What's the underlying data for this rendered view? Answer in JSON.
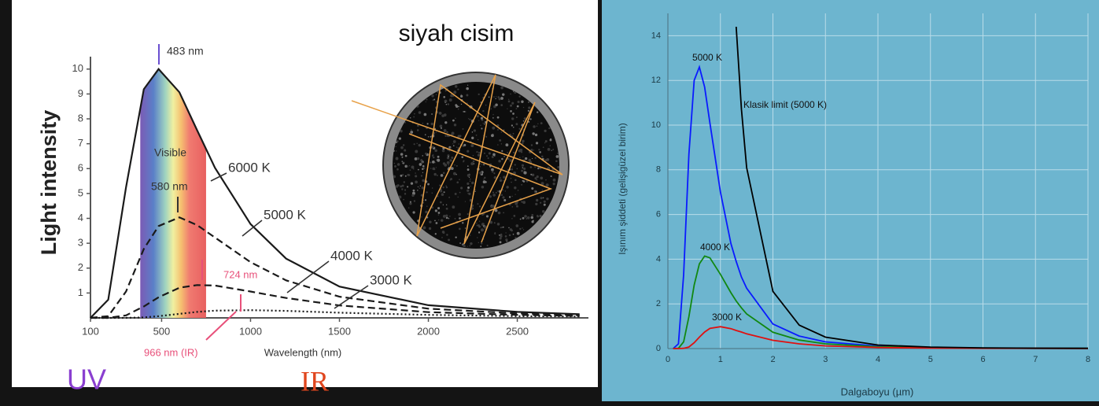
{
  "chart_data": [
    {
      "type": "line",
      "x_label": "Wavelength (nm)",
      "y_label": "Light intensity",
      "x": [
        100,
        200,
        300,
        400,
        483,
        600,
        700,
        800,
        1000,
        1200,
        1500,
        2000,
        2500,
        2850
      ],
      "series": [
        {
          "name": "6000 K",
          "color": "#1a1a1a",
          "dash": "solid",
          "values": [
            0,
            0.73,
            5.25,
            9.19,
            10,
            9.07,
            7.54,
            6.03,
            3.77,
            2.38,
            1.26,
            0.51,
            0.24,
            0.15
          ]
        },
        {
          "name": "5000 K",
          "color": "#1a1a1a",
          "dash": "dashed",
          "values": [
            0,
            0.07,
            1.06,
            2.77,
            3.69,
            4.04,
            3.73,
            3.23,
            2.24,
            1.51,
            0.85,
            0.37,
            0.18,
            0.11
          ]
        },
        {
          "name": "4000 K",
          "color": "#1a1a1a",
          "dash": "dashed",
          "values": [
            0,
            0,
            0.1,
            0.46,
            0.83,
            1.21,
            1.32,
            1.3,
            1.06,
            0.8,
            0.5,
            0.23,
            0.12,
            0.08
          ]
        },
        {
          "name": "3000 K",
          "color": "#1a1a1a",
          "dash": "dotted",
          "values": [
            0,
            0,
            0,
            0.02,
            0.07,
            0.16,
            0.24,
            0.29,
            0.31,
            0.28,
            0.21,
            0.12,
            0.07,
            0.05
          ]
        }
      ],
      "annotations": [
        "483 nm",
        "580 nm",
        "724 nm",
        "966 nm (IR)",
        "Visible",
        "UV",
        "IR"
      ],
      "xlim": [
        100,
        2900
      ],
      "xticks": [
        100,
        500,
        1000,
        1500,
        2000,
        2500
      ],
      "ylim": [
        0,
        10.5
      ],
      "yticks": [
        1,
        2,
        3,
        4,
        5,
        6,
        7,
        8,
        9,
        10
      ],
      "grid": false
    },
    {
      "type": "line",
      "x_label": "Dalgaboyu (µm)",
      "y_label": "Işınım şiddeti (gelişigüzel birim)",
      "x": [
        0.1,
        0.2,
        0.3,
        0.4,
        0.5,
        0.6,
        0.7,
        0.8,
        1,
        1.2,
        1.3,
        1.4,
        1.5,
        2,
        2.5,
        3,
        4,
        5,
        6,
        7,
        8
      ],
      "series": [
        {
          "name": "5000 K",
          "color": "#0a1aff",
          "dash": "solid",
          "values": [
            0,
            0.21,
            3.3,
            8.7,
            12.0,
            12.6,
            11.7,
            10.1,
            7.0,
            4.7,
            3.9,
            3.2,
            2.7,
            1.1,
            0.56,
            0.3,
            0.11,
            0.05,
            0.02,
            0.01,
            0.01
          ]
        },
        {
          "name": "4000 K",
          "color": "#118811",
          "dash": "solid",
          "values": [
            0,
            0.01,
            0.3,
            1.43,
            2.84,
            3.79,
            4.14,
            4.06,
            3.32,
            2.5,
            2.13,
            1.82,
            1.55,
            0.73,
            0.38,
            0.21,
            0.08,
            0.04,
            0.02,
            0.01,
            0.01
          ]
        },
        {
          "name": "3000 K",
          "color": "#e01010",
          "dash": "solid",
          "values": [
            0,
            0,
            0.01,
            0.07,
            0.26,
            0.51,
            0.74,
            0.9,
            0.98,
            0.89,
            0.81,
            0.74,
            0.66,
            0.37,
            0.21,
            0.12,
            0.05,
            0.02,
            0.01,
            0.01,
            0
          ]
        },
        {
          "name": "Klasik limit (5000 K)",
          "color": "#000000",
          "dash": "solid",
          "values": [
            null,
            null,
            null,
            null,
            null,
            null,
            null,
            null,
            null,
            null,
            14.4,
            10.7,
            8.1,
            2.56,
            1.05,
            0.51,
            0.16,
            0.066,
            0.032,
            0.017,
            0.01
          ]
        }
      ],
      "xlim": [
        0,
        8
      ],
      "xticks": [
        0,
        1,
        2,
        3,
        4,
        5,
        6,
        7,
        8
      ],
      "ylim": [
        0,
        15
      ],
      "yticks": [
        0,
        2,
        4,
        6,
        8,
        10,
        12,
        14
      ],
      "grid": true
    }
  ],
  "diagram": {
    "title": "siyah cisim"
  }
}
